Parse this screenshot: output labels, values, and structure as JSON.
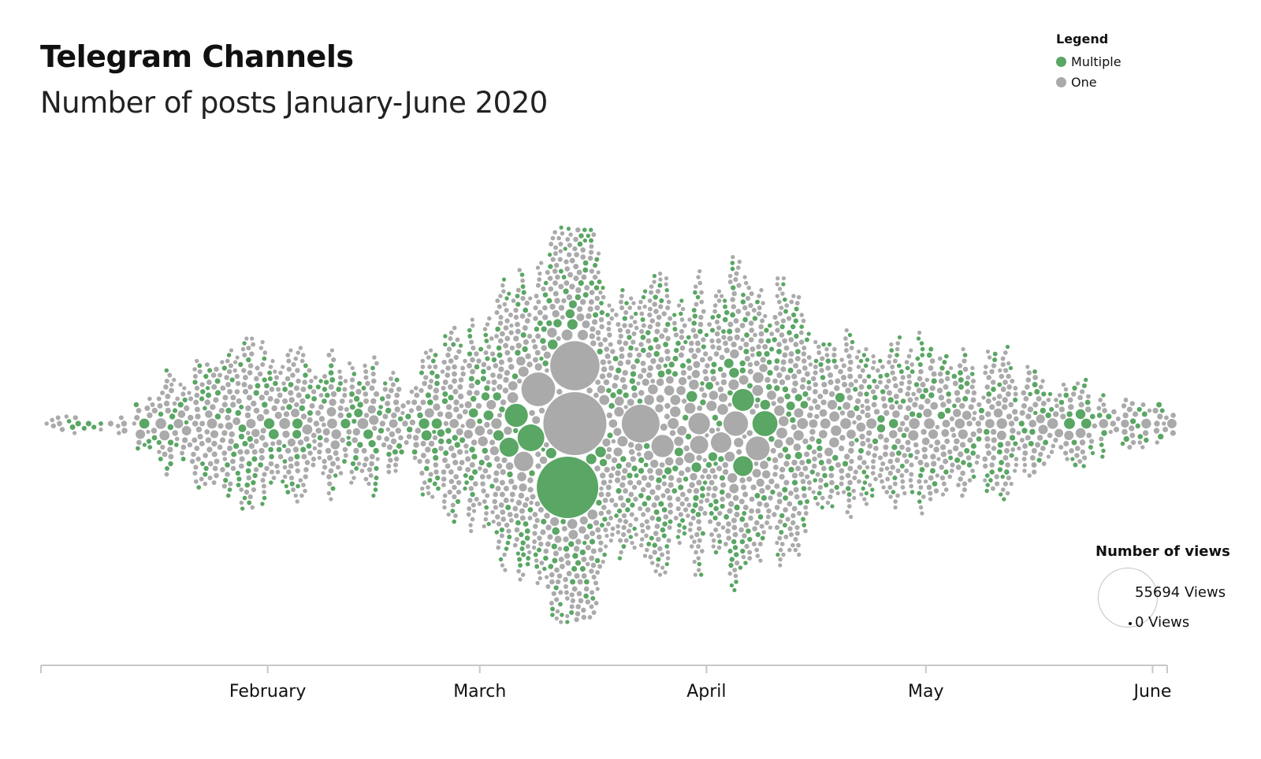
{
  "chart_data": {
    "type": "scatter",
    "subtype": "beeswarm",
    "title": "Telegram Channels",
    "subtitle": "Number of posts January-June 2020",
    "x_axis": {
      "type": "time",
      "domain": [
        "2020-01-01",
        "2020-06-03"
      ],
      "tick_labels": [
        {
          "label": "February",
          "date": "2020-02-01"
        },
        {
          "label": "March",
          "date": "2020-03-01"
        },
        {
          "label": "April",
          "date": "2020-04-01"
        },
        {
          "label": "May",
          "date": "2020-05-01"
        },
        {
          "label": "June",
          "date": "2020-06-01"
        }
      ]
    },
    "legend": {
      "title": "Legend",
      "placement": "top-right",
      "entries": [
        {
          "name": "Multiple",
          "color": "#5aa664"
        },
        {
          "name": "One",
          "color": "#aaaaaa"
        }
      ]
    },
    "size_legend": {
      "title": "Number of views",
      "placement": "bottom-right",
      "max_views": 55694,
      "min_views": 0,
      "max_label": "55694 Views",
      "min_label": "0 Views"
    },
    "categories": [
      "Multiple",
      "One"
    ],
    "highlighted_points": [
      {
        "date": "2020-03-14",
        "views": 55694,
        "category": "One"
      },
      {
        "date": "2020-03-13",
        "views": 53000,
        "category": "Multiple"
      },
      {
        "date": "2020-03-14",
        "views": 34000,
        "category": "One"
      },
      {
        "date": "2020-03-23",
        "views": 20000,
        "category": "One"
      },
      {
        "date": "2020-03-09",
        "views": 16000,
        "category": "One"
      },
      {
        "date": "2020-04-09",
        "views": 8800,
        "category": "Multiple"
      },
      {
        "date": "2020-03-08",
        "views": 10000,
        "category": "Multiple"
      },
      {
        "date": "2020-04-05",
        "views": 8500,
        "category": "One"
      },
      {
        "date": "2020-04-08",
        "views": 8000,
        "category": "One"
      },
      {
        "date": "2020-04-06",
        "views": 6800,
        "category": "Multiple"
      },
      {
        "date": "2020-03-06",
        "views": 7500,
        "category": "Multiple"
      },
      {
        "date": "2020-03-26",
        "views": 7000,
        "category": "One"
      },
      {
        "date": "2020-03-31",
        "views": 6500,
        "category": "One"
      },
      {
        "date": "2020-04-03",
        "views": 5900,
        "category": "One"
      },
      {
        "date": "2020-03-07",
        "views": 5300,
        "category": "One"
      },
      {
        "date": "2020-04-06",
        "views": 5500,
        "category": "Multiple"
      },
      {
        "date": "2020-03-05",
        "views": 5100,
        "category": "Multiple"
      },
      {
        "date": "2020-03-31",
        "views": 4600,
        "category": "One"
      }
    ],
    "point_count_approx": 3000,
    "grid": false
  }
}
